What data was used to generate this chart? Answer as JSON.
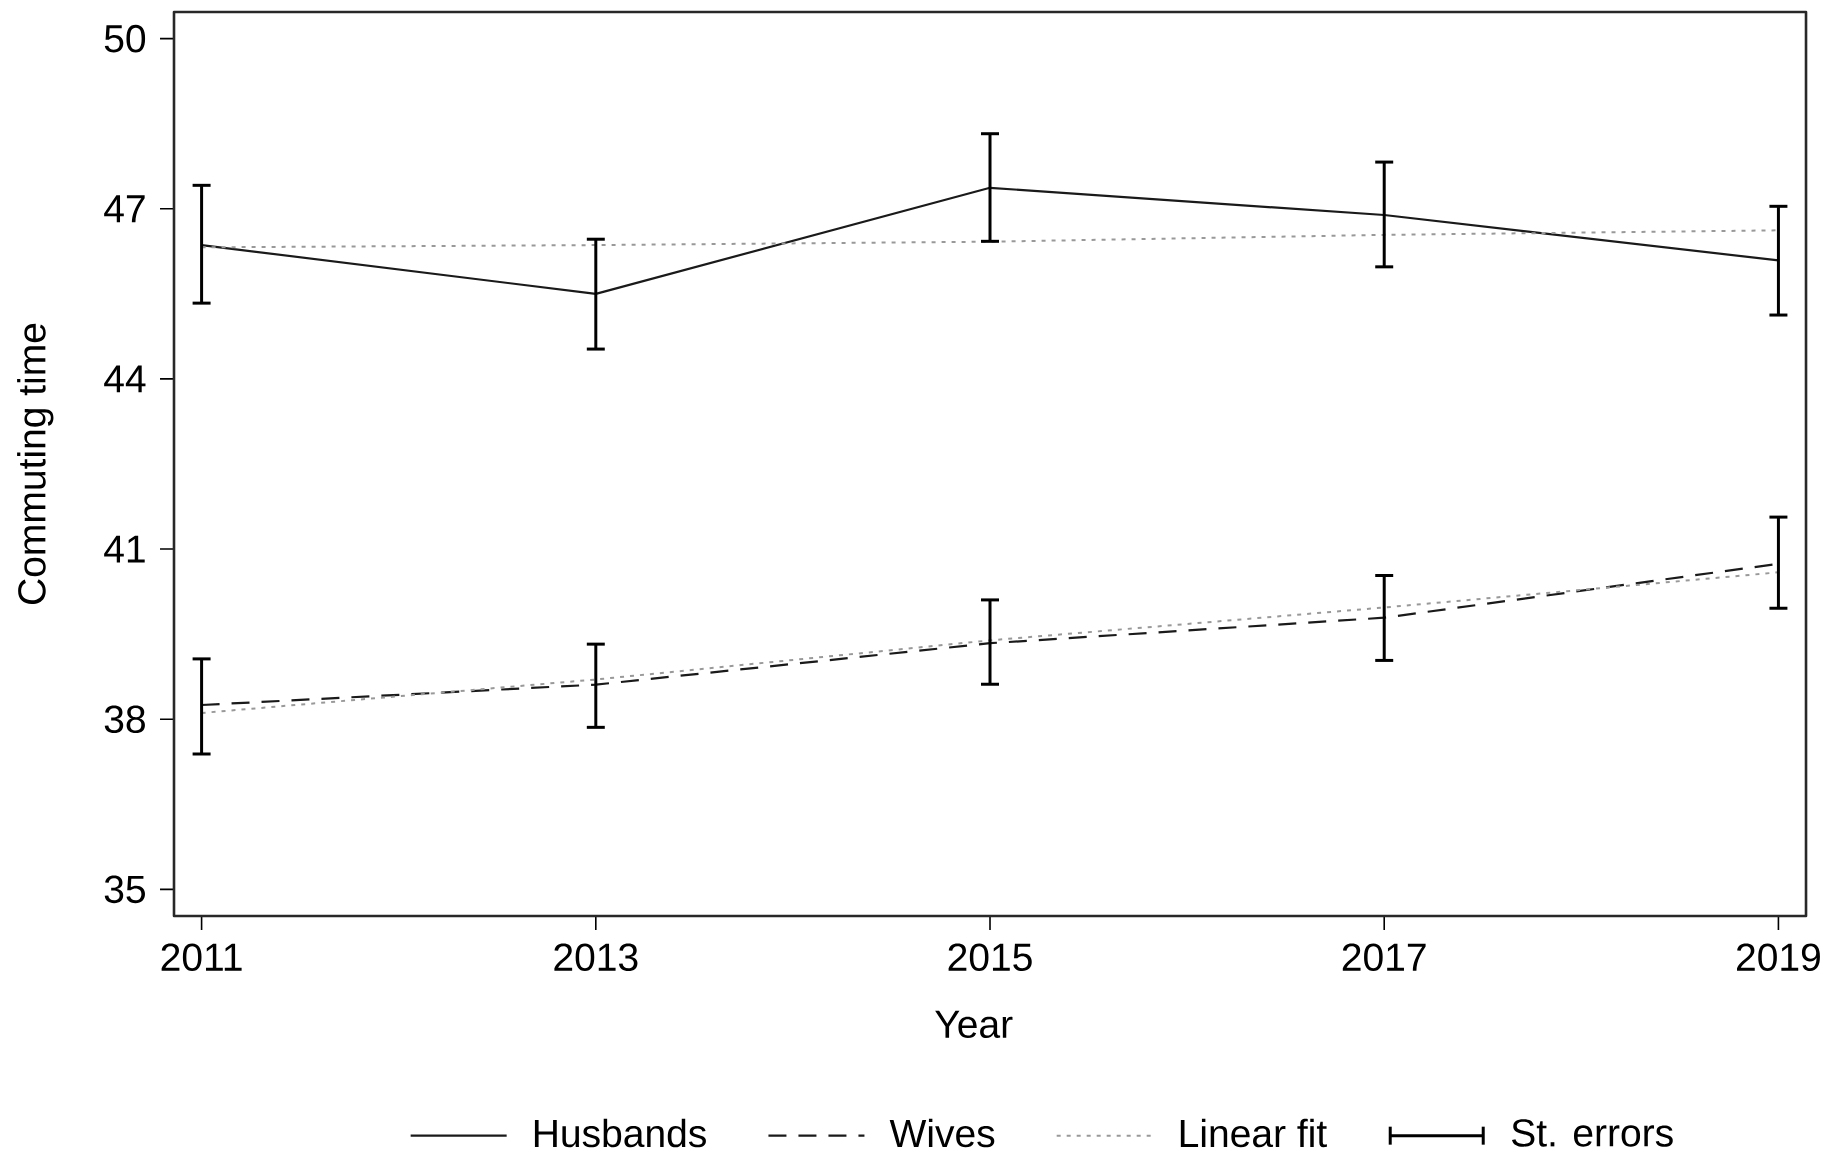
{
  "chart_data": {
    "type": "line",
    "xlabel": "Year",
    "ylabel": "Commuting time",
    "x": [
      2011,
      2013,
      2015,
      2017,
      2019
    ],
    "xlim": [
      2010.86,
      2019.14
    ],
    "xticks": [
      2011,
      2013,
      2015,
      2017,
      2019
    ],
    "ylim": [
      34.53,
      50.47
    ],
    "yticks": [
      35,
      38,
      41,
      44,
      47,
      50
    ],
    "legend": "bottom",
    "marker": "none",
    "series": [
      {
        "name": "Husbands",
        "color": "#1a1a1a",
        "line_style": "solid",
        "values": [
          46.36,
          45.5,
          47.37,
          46.89,
          46.09
        ],
        "errors": [
          [
            45.31,
            47.44
          ],
          [
            44.5,
            46.49
          ],
          [
            46.4,
            48.35
          ],
          [
            45.95,
            47.85
          ],
          [
            45.1,
            47.07
          ]
        ]
      },
      {
        "name": "Wives",
        "color": "#1a1a1a",
        "line_style": "dashed",
        "values": [
          38.25,
          38.61,
          39.34,
          39.79,
          40.74
        ],
        "errors": [
          [
            37.36,
            39.09
          ],
          [
            37.83,
            39.35
          ],
          [
            38.59,
            40.13
          ],
          [
            39.01,
            40.56
          ],
          [
            39.93,
            41.59
          ]
        ]
      },
      {
        "name": "Linear fit",
        "type": "line",
        "color": "#999999",
        "line_style": "dotted",
        "values": [
          46.32,
          46.36,
          46.42,
          46.54,
          46.62
        ]
      },
      {
        "type": "line",
        "color": "#999999",
        "line_style": "dotted",
        "values": [
          38.11,
          38.7,
          39.39,
          39.97,
          40.59
        ]
      }
    ],
    "annotations": [
      "St. errors"
    ]
  }
}
